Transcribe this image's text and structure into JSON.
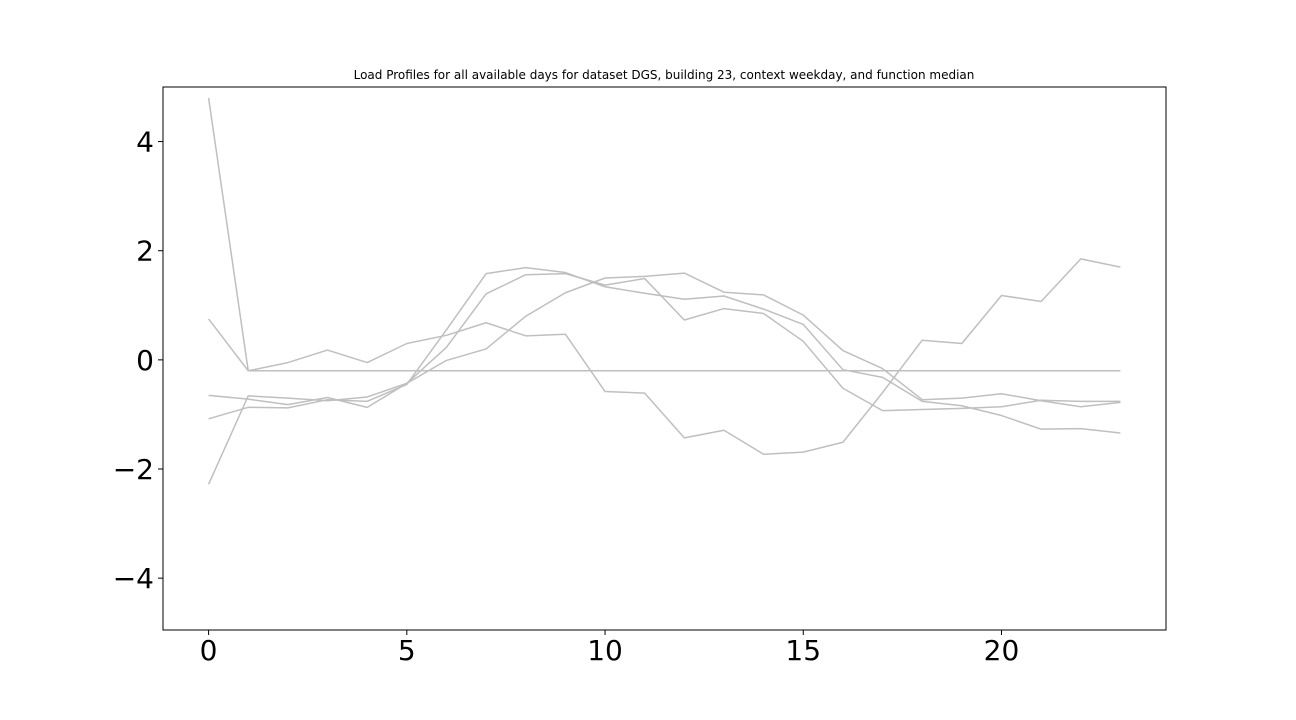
{
  "chart_data": {
    "type": "line",
    "title": "Load Profiles for all available days for dataset DGS, building 23, context weekday, and function median",
    "xlabel": "",
    "ylabel": "",
    "xlim": [
      -1.15,
      24.15
    ],
    "ylim": [
      -4.95,
      5.0
    ],
    "xticks": [
      0,
      5,
      10,
      15,
      20
    ],
    "xtick_labels": [
      "0",
      "5",
      "10",
      "15",
      "20"
    ],
    "yticks": [
      4,
      2,
      0,
      -2,
      -4
    ],
    "ytick_labels": [
      "4",
      "2",
      "0",
      "−2",
      "−4"
    ],
    "grid": false,
    "legend": "none",
    "line_color": "#bfbfbf",
    "x": [
      0,
      1,
      2,
      3,
      4,
      5,
      6,
      7,
      8,
      9,
      10,
      11,
      12,
      13,
      14,
      15,
      16,
      17,
      18,
      19,
      20,
      21,
      22,
      23
    ],
    "series": [
      {
        "values": [
          4.8,
          -0.2,
          -0.2,
          -0.2,
          -0.2,
          -0.2,
          -0.2,
          -0.2,
          -0.2,
          -0.2,
          -0.2,
          -0.2,
          -0.2,
          -0.2,
          -0.2,
          -0.2,
          -0.2,
          -0.2,
          -0.2,
          -0.2,
          -0.2,
          -0.2,
          -0.2,
          -0.2
        ]
      },
      {
        "values": [
          0.75,
          -0.2,
          -0.05,
          0.18,
          -0.05,
          0.3,
          0.45,
          0.68,
          0.44,
          0.47,
          -0.58,
          -0.61,
          -1.43,
          -1.29,
          -1.73,
          -1.69,
          -1.51,
          -0.6,
          0.36,
          0.3,
          1.18,
          1.07,
          1.85,
          1.7
        ]
      },
      {
        "values": [
          -1.08,
          -0.87,
          -0.88,
          -0.73,
          -0.76,
          -0.45,
          0.55,
          1.58,
          1.69,
          1.6,
          1.34,
          1.22,
          1.11,
          1.17,
          0.93,
          0.65,
          -0.18,
          -0.32,
          -0.76,
          -0.84,
          -1.02,
          -1.27,
          -1.26,
          -1.34
        ]
      },
      {
        "values": [
          -0.65,
          -0.72,
          -0.82,
          -0.69,
          -0.87,
          -0.43,
          0.23,
          1.21,
          1.56,
          1.58,
          1.37,
          1.49,
          0.73,
          0.94,
          0.85,
          0.34,
          -0.52,
          -0.93,
          -0.91,
          -0.89,
          -0.86,
          -0.74,
          -0.76,
          -0.76
        ]
      },
      {
        "values": [
          -2.28,
          -0.66,
          -0.7,
          -0.75,
          -0.68,
          -0.43,
          -0.01,
          0.2,
          0.8,
          1.23,
          1.5,
          1.53,
          1.59,
          1.24,
          1.19,
          0.82,
          0.17,
          -0.16,
          -0.73,
          -0.7,
          -0.62,
          -0.75,
          -0.86,
          -0.78
        ]
      }
    ]
  }
}
